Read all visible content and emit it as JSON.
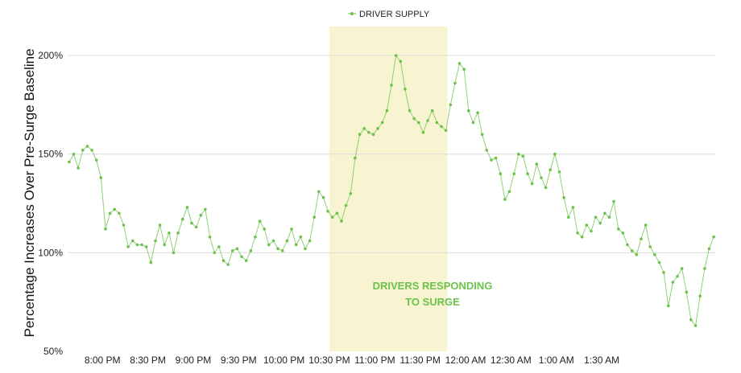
{
  "chart_data": {
    "type": "line",
    "title": "",
    "ylabel": "Percentage Increases Over Pre-Surge Baseline",
    "xlabel": "",
    "ylim": [
      50,
      220
    ],
    "xlim": [
      "7:36 PM",
      "1:49 AM"
    ],
    "x_unit": "time of day (minutes since midnight; values above 1440 are after midnight)",
    "y_ticks": [
      50,
      100,
      150,
      200
    ],
    "y_tick_labels": [
      "50%",
      "100%",
      "150%",
      "200%"
    ],
    "x_ticks": [
      "8:00 PM",
      "8:30 PM",
      "9:00 PM",
      "9:30 PM",
      "10:00 PM",
      "10:30 PM",
      "11:00 PM",
      "11:30 PM",
      "12:00 AM",
      "12:30 AM",
      "1:00 AM",
      "1:30 AM"
    ],
    "x_tick_values": [
      1200,
      1230,
      1260,
      1290,
      1320,
      1350,
      1380,
      1410,
      1440,
      1470,
      1500,
      1530
    ],
    "grid": "horizontal",
    "legend_position": "top-center",
    "series": [
      {
        "name": "DRIVER SUPPLY",
        "color": "#6cc24a",
        "points": [
          [
            1178,
            146
          ],
          [
            1181,
            150
          ],
          [
            1184,
            143
          ],
          [
            1187,
            152
          ],
          [
            1190,
            154
          ],
          [
            1193,
            152
          ],
          [
            1196,
            147
          ],
          [
            1199,
            138
          ],
          [
            1202,
            112
          ],
          [
            1205,
            120
          ],
          [
            1208,
            122
          ],
          [
            1211,
            120
          ],
          [
            1214,
            114
          ],
          [
            1217,
            103
          ],
          [
            1220,
            106
          ],
          [
            1223,
            104
          ],
          [
            1226,
            104
          ],
          [
            1229,
            103
          ],
          [
            1232,
            95
          ],
          [
            1235,
            106
          ],
          [
            1238,
            114
          ],
          [
            1241,
            104
          ],
          [
            1244,
            110
          ],
          [
            1247,
            100
          ],
          [
            1250,
            110
          ],
          [
            1253,
            117
          ],
          [
            1256,
            123
          ],
          [
            1259,
            115
          ],
          [
            1262,
            113
          ],
          [
            1265,
            119
          ],
          [
            1268,
            122
          ],
          [
            1271,
            108
          ],
          [
            1274,
            100
          ],
          [
            1277,
            103
          ],
          [
            1280,
            96
          ],
          [
            1283,
            94
          ],
          [
            1286,
            101
          ],
          [
            1289,
            102
          ],
          [
            1292,
            98
          ],
          [
            1295,
            96
          ],
          [
            1298,
            101
          ],
          [
            1301,
            108
          ],
          [
            1304,
            116
          ],
          [
            1307,
            112
          ],
          [
            1310,
            104
          ],
          [
            1313,
            106
          ],
          [
            1316,
            102
          ],
          [
            1319,
            101
          ],
          [
            1322,
            106
          ],
          [
            1325,
            112
          ],
          [
            1328,
            104
          ],
          [
            1331,
            108
          ],
          [
            1334,
            102
          ],
          [
            1337,
            106
          ],
          [
            1340,
            118
          ],
          [
            1343,
            131
          ],
          [
            1346,
            128
          ],
          [
            1349,
            121
          ],
          [
            1352,
            118
          ],
          [
            1355,
            120
          ],
          [
            1358,
            116
          ],
          [
            1361,
            124
          ],
          [
            1364,
            130
          ],
          [
            1367,
            148
          ],
          [
            1370,
            160
          ],
          [
            1373,
            163
          ],
          [
            1376,
            161
          ],
          [
            1379,
            160
          ],
          [
            1382,
            163
          ],
          [
            1385,
            166
          ],
          [
            1388,
            172
          ],
          [
            1391,
            185
          ],
          [
            1394,
            200
          ],
          [
            1397,
            197
          ],
          [
            1400,
            183
          ],
          [
            1403,
            172
          ],
          [
            1406,
            168
          ],
          [
            1409,
            166
          ],
          [
            1412,
            161
          ],
          [
            1415,
            167
          ],
          [
            1418,
            172
          ],
          [
            1421,
            166
          ],
          [
            1424,
            164
          ],
          [
            1427,
            162
          ],
          [
            1430,
            175
          ],
          [
            1433,
            186
          ],
          [
            1436,
            196
          ],
          [
            1439,
            193
          ],
          [
            1442,
            172
          ],
          [
            1445,
            166
          ],
          [
            1448,
            171
          ],
          [
            1451,
            160
          ],
          [
            1454,
            152
          ],
          [
            1457,
            147
          ],
          [
            1460,
            148
          ],
          [
            1463,
            140
          ],
          [
            1466,
            127
          ],
          [
            1469,
            131
          ],
          [
            1472,
            140
          ],
          [
            1475,
            150
          ],
          [
            1478,
            149
          ],
          [
            1481,
            140
          ],
          [
            1484,
            135
          ],
          [
            1487,
            145
          ],
          [
            1490,
            138
          ],
          [
            1493,
            133
          ],
          [
            1496,
            142
          ],
          [
            1499,
            150
          ],
          [
            1502,
            141
          ],
          [
            1505,
            128
          ],
          [
            1508,
            118
          ],
          [
            1511,
            123
          ],
          [
            1514,
            110
          ],
          [
            1517,
            108
          ],
          [
            1520,
            114
          ],
          [
            1523,
            111
          ],
          [
            1526,
            118
          ],
          [
            1529,
            115
          ],
          [
            1532,
            120
          ],
          [
            1535,
            118
          ],
          [
            1538,
            126
          ],
          [
            1541,
            112
          ],
          [
            1544,
            110
          ],
          [
            1547,
            104
          ],
          [
            1550,
            101
          ],
          [
            1553,
            99
          ],
          [
            1556,
            107
          ],
          [
            1559,
            114
          ],
          [
            1562,
            103
          ],
          [
            1565,
            99
          ],
          [
            1568,
            95
          ],
          [
            1571,
            90
          ],
          [
            1574,
            73
          ],
          [
            1577,
            85
          ],
          [
            1580,
            88
          ],
          [
            1583,
            92
          ],
          [
            1586,
            80
          ],
          [
            1589,
            66
          ],
          [
            1592,
            63
          ],
          [
            1595,
            78
          ],
          [
            1598,
            92
          ],
          [
            1601,
            102
          ],
          [
            1604,
            108
          ]
        ]
      }
    ],
    "annotation": {
      "text_line1": "DRIVERS RESPONDING",
      "text_line2": "TO SURGE",
      "color": "#6cc24a",
      "shade_color": "#f8f4d2",
      "x_start": 1350,
      "x_end": 1428
    }
  }
}
